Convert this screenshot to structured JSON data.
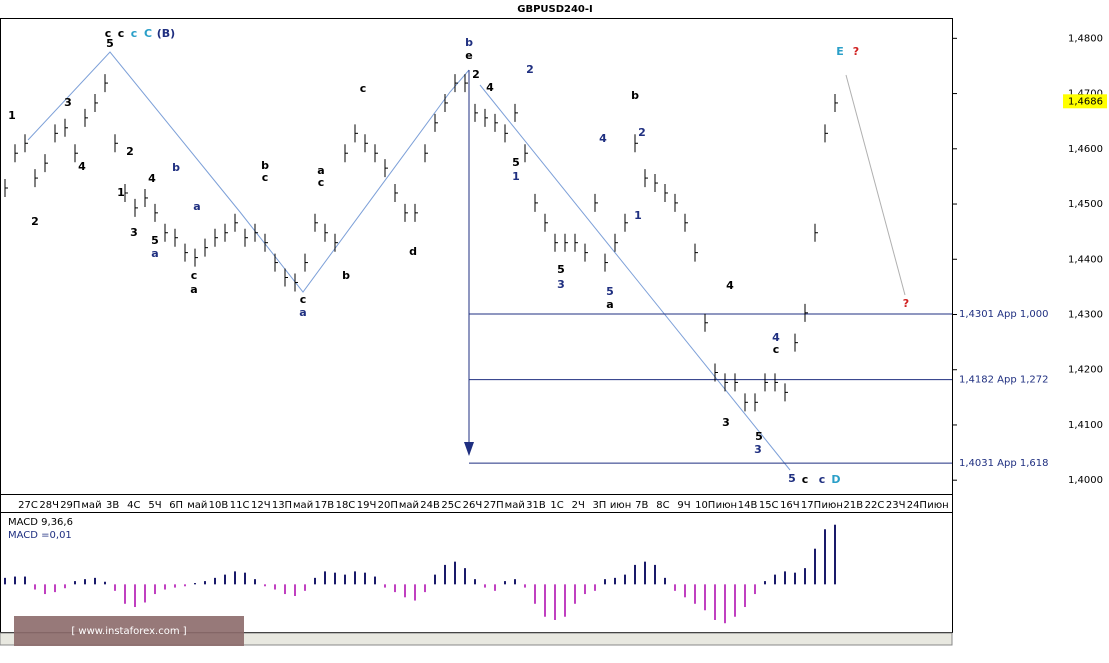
{
  "chart_data": {
    "type": "ohlc-close",
    "title": "GBPUSD240-I",
    "color": "#000000",
    "ylim": [
      1.3975,
      1.4835
    ],
    "yticks": [
      {
        "value": 1.4,
        "label": "1,4000"
      },
      {
        "value": 1.41,
        "label": "1,4100"
      },
      {
        "value": 1.42,
        "label": "1,4200"
      },
      {
        "value": 1.43,
        "label": "1,4300"
      },
      {
        "value": 1.44,
        "label": "1,4400"
      },
      {
        "value": 1.45,
        "label": "1,4500"
      },
      {
        "value": 1.46,
        "label": "1,4600"
      },
      {
        "value": 1.47,
        "label": "1,4700"
      },
      {
        "value": 1.48,
        "label": "1,4800"
      }
    ],
    "current_price": {
      "value": 1.4686,
      "label": "1,4686"
    },
    "x_labels": [
      "27С",
      "28Ч",
      "29П",
      "май",
      "3В",
      "4С",
      "5Ч",
      "6П",
      "май",
      "10В",
      "11С",
      "12Ч",
      "13П",
      "май",
      "17В",
      "18С",
      "19Ч",
      "20П",
      "май",
      "24В",
      "25С",
      "26Ч",
      "27П",
      "май",
      "31В",
      "1С",
      "2Ч",
      "3П",
      "июн",
      "7В",
      "8С",
      "9Ч",
      "10П",
      "июн",
      "14В",
      "15С",
      "16Ч",
      "17П",
      "июн",
      "21В",
      "22С",
      "23Ч",
      "24П",
      "июн"
    ],
    "values": [
      1.4529,
      1.4592,
      1.461,
      1.4547,
      1.4574,
      1.4628,
      1.4638,
      1.4592,
      1.4656,
      1.4683,
      1.4719,
      1.461,
      1.452,
      1.4493,
      1.4511,
      1.4484,
      1.4448,
      1.4439,
      1.4412,
      1.4403,
      1.4421,
      1.4439,
      1.4448,
      1.4466,
      1.4439,
      1.4448,
      1.443,
      1.4394,
      1.4367,
      1.4358,
      1.4394,
      1.4466,
      1.4448,
      1.443,
      1.4592,
      1.4628,
      1.461,
      1.4592,
      1.4565,
      1.452,
      1.4484,
      1.4484,
      1.4592,
      1.4647,
      1.4683,
      1.4719,
      1.4719,
      1.4665,
      1.4656,
      1.4647,
      1.4628,
      1.4665,
      1.4592,
      1.4502,
      1.4466,
      1.443,
      1.443,
      1.443,
      1.4412,
      1.4502,
      1.4394,
      1.443,
      1.4466,
      1.461,
      1.4547,
      1.4538,
      1.452,
      1.4502,
      1.4466,
      1.4412,
      1.4285,
      1.4195,
      1.4177,
      1.4177,
      1.4141,
      1.4141,
      1.4177,
      1.4177,
      1.4159,
      1.4249,
      1.4303,
      1.4448,
      1.4628,
      1.4683
    ],
    "levels": [
      {
        "value": 1.4301,
        "label": "1,4301 Арр 1,000"
      },
      {
        "value": 1.4182,
        "label": "1,4182 Арр 1,272"
      },
      {
        "value": 1.4031,
        "label": "1,4031 Арр 1,618"
      }
    ],
    "level_color": "#1f2f80",
    "annotations": [
      {
        "text": "5",
        "color": "#000000"
      },
      {
        "text": "c",
        "color": "#000000"
      },
      {
        "text": "c",
        "color": "#000000"
      },
      {
        "text": "c",
        "color": "#2a9fc8"
      },
      {
        "text": "C",
        "color": "#2a9fc8"
      },
      {
        "text": "(B)",
        "color": "#1f2f80"
      },
      {
        "text": "1",
        "color": "#000000"
      },
      {
        "text": "3",
        "color": "#000000"
      },
      {
        "text": "4",
        "color": "#000000"
      },
      {
        "text": "2",
        "color": "#000000"
      },
      {
        "text": "1",
        "color": "#000000"
      },
      {
        "text": "2",
        "color": "#000000"
      },
      {
        "text": "3",
        "color": "#000000"
      },
      {
        "text": "4",
        "color": "#000000"
      },
      {
        "text": "5",
        "color": "#000000"
      },
      {
        "text": "a",
        "color": "#1f2f80"
      },
      {
        "text": "b",
        "color": "#1f2f80"
      },
      {
        "text": "a",
        "color": "#1f2f80"
      },
      {
        "text": "c",
        "color": "#000000"
      },
      {
        "text": "a",
        "color": "#000000"
      },
      {
        "text": "b",
        "color": "#000000"
      },
      {
        "text": "c",
        "color": "#000000"
      },
      {
        "text": "c",
        "color": "#000000"
      },
      {
        "text": "a",
        "color": "#1f2f80"
      },
      {
        "text": "a",
        "color": "#000000"
      },
      {
        "text": "c",
        "color": "#000000"
      },
      {
        "text": "b",
        "color": "#000000"
      },
      {
        "text": "c",
        "color": "#000000"
      },
      {
        "text": "d",
        "color": "#000000"
      },
      {
        "text": "b",
        "color": "#1f2f80"
      },
      {
        "text": "e",
        "color": "#000000"
      },
      {
        "text": "2",
        "color": "#000000"
      },
      {
        "text": "4",
        "color": "#000000"
      },
      {
        "text": "2",
        "color": "#1f2f80"
      },
      {
        "text": "5",
        "color": "#000000"
      },
      {
        "text": "1",
        "color": "#1f2f80"
      },
      {
        "text": "3",
        "color": "#1f2f80"
      },
      {
        "text": "5",
        "color": "#000000"
      },
      {
        "text": "4",
        "color": "#1f2f80"
      },
      {
        "text": "b",
        "color": "#000000"
      },
      {
        "text": "2",
        "color": "#1f2f80"
      },
      {
        "text": "1",
        "color": "#1f2f80"
      },
      {
        "text": "5",
        "color": "#1f2f80"
      },
      {
        "text": "a",
        "color": "#000000"
      },
      {
        "text": "4",
        "color": "#000000"
      },
      {
        "text": "3",
        "color": "#000000"
      },
      {
        "text": "4",
        "color": "#1f2f80"
      },
      {
        "text": "c",
        "color": "#000000"
      },
      {
        "text": "5",
        "color": "#000000"
      },
      {
        "text": "3",
        "color": "#1f2f80"
      },
      {
        "text": "5",
        "color": "#1f2f80"
      },
      {
        "text": "c",
        "color": "#000000"
      },
      {
        "text": "c",
        "color": "#1f2f80"
      },
      {
        "text": "D",
        "color": "#2a9fc8"
      },
      {
        "text": "E",
        "color": "#2a9fc8"
      },
      {
        "text": "?",
        "color": "#d02020"
      },
      {
        "text": "?",
        "color": "#d02020"
      }
    ],
    "macd": {
      "title": "MACD 9,36,6",
      "value_label": "MACD =0,01",
      "ylim": [
        -0.0072,
        0.0107
      ],
      "pos_color": "#1a1a6a",
      "neg_color": "#c040c0",
      "values": [
        0.001,
        0.0012,
        0.0012,
        -0.0008,
        -0.0015,
        -0.0012,
        -0.0006,
        0.0005,
        0.0008,
        0.001,
        0.0004,
        -0.001,
        -0.003,
        -0.0035,
        -0.0028,
        -0.0015,
        -0.0008,
        -0.0005,
        -0.0003,
        0.0002,
        0.0005,
        0.001,
        0.0015,
        0.002,
        0.0018,
        0.0008,
        -0.0003,
        -0.0008,
        -0.0015,
        -0.0018,
        -0.001,
        0.001,
        0.002,
        0.0018,
        0.0015,
        0.002,
        0.0018,
        0.0012,
        -0.0005,
        -0.0012,
        -0.002,
        -0.0025,
        -0.0012,
        0.0015,
        0.003,
        0.0035,
        0.0025,
        0.0008,
        -0.0005,
        -0.001,
        0.0005,
        0.0008,
        -0.0005,
        -0.003,
        -0.005,
        -0.0055,
        -0.005,
        -0.003,
        -0.0015,
        -0.001,
        0.0008,
        0.001,
        0.0015,
        0.003,
        0.0035,
        0.003,
        0.001,
        -0.001,
        -0.002,
        -0.003,
        -0.004,
        -0.0055,
        -0.006,
        -0.005,
        -0.0035,
        -0.0015,
        0.0005,
        0.0015,
        0.002,
        0.0018,
        0.0025,
        0.0055,
        0.0085,
        0.0092
      ]
    },
    "watermark": "[ www.instaforex.com ]"
  }
}
